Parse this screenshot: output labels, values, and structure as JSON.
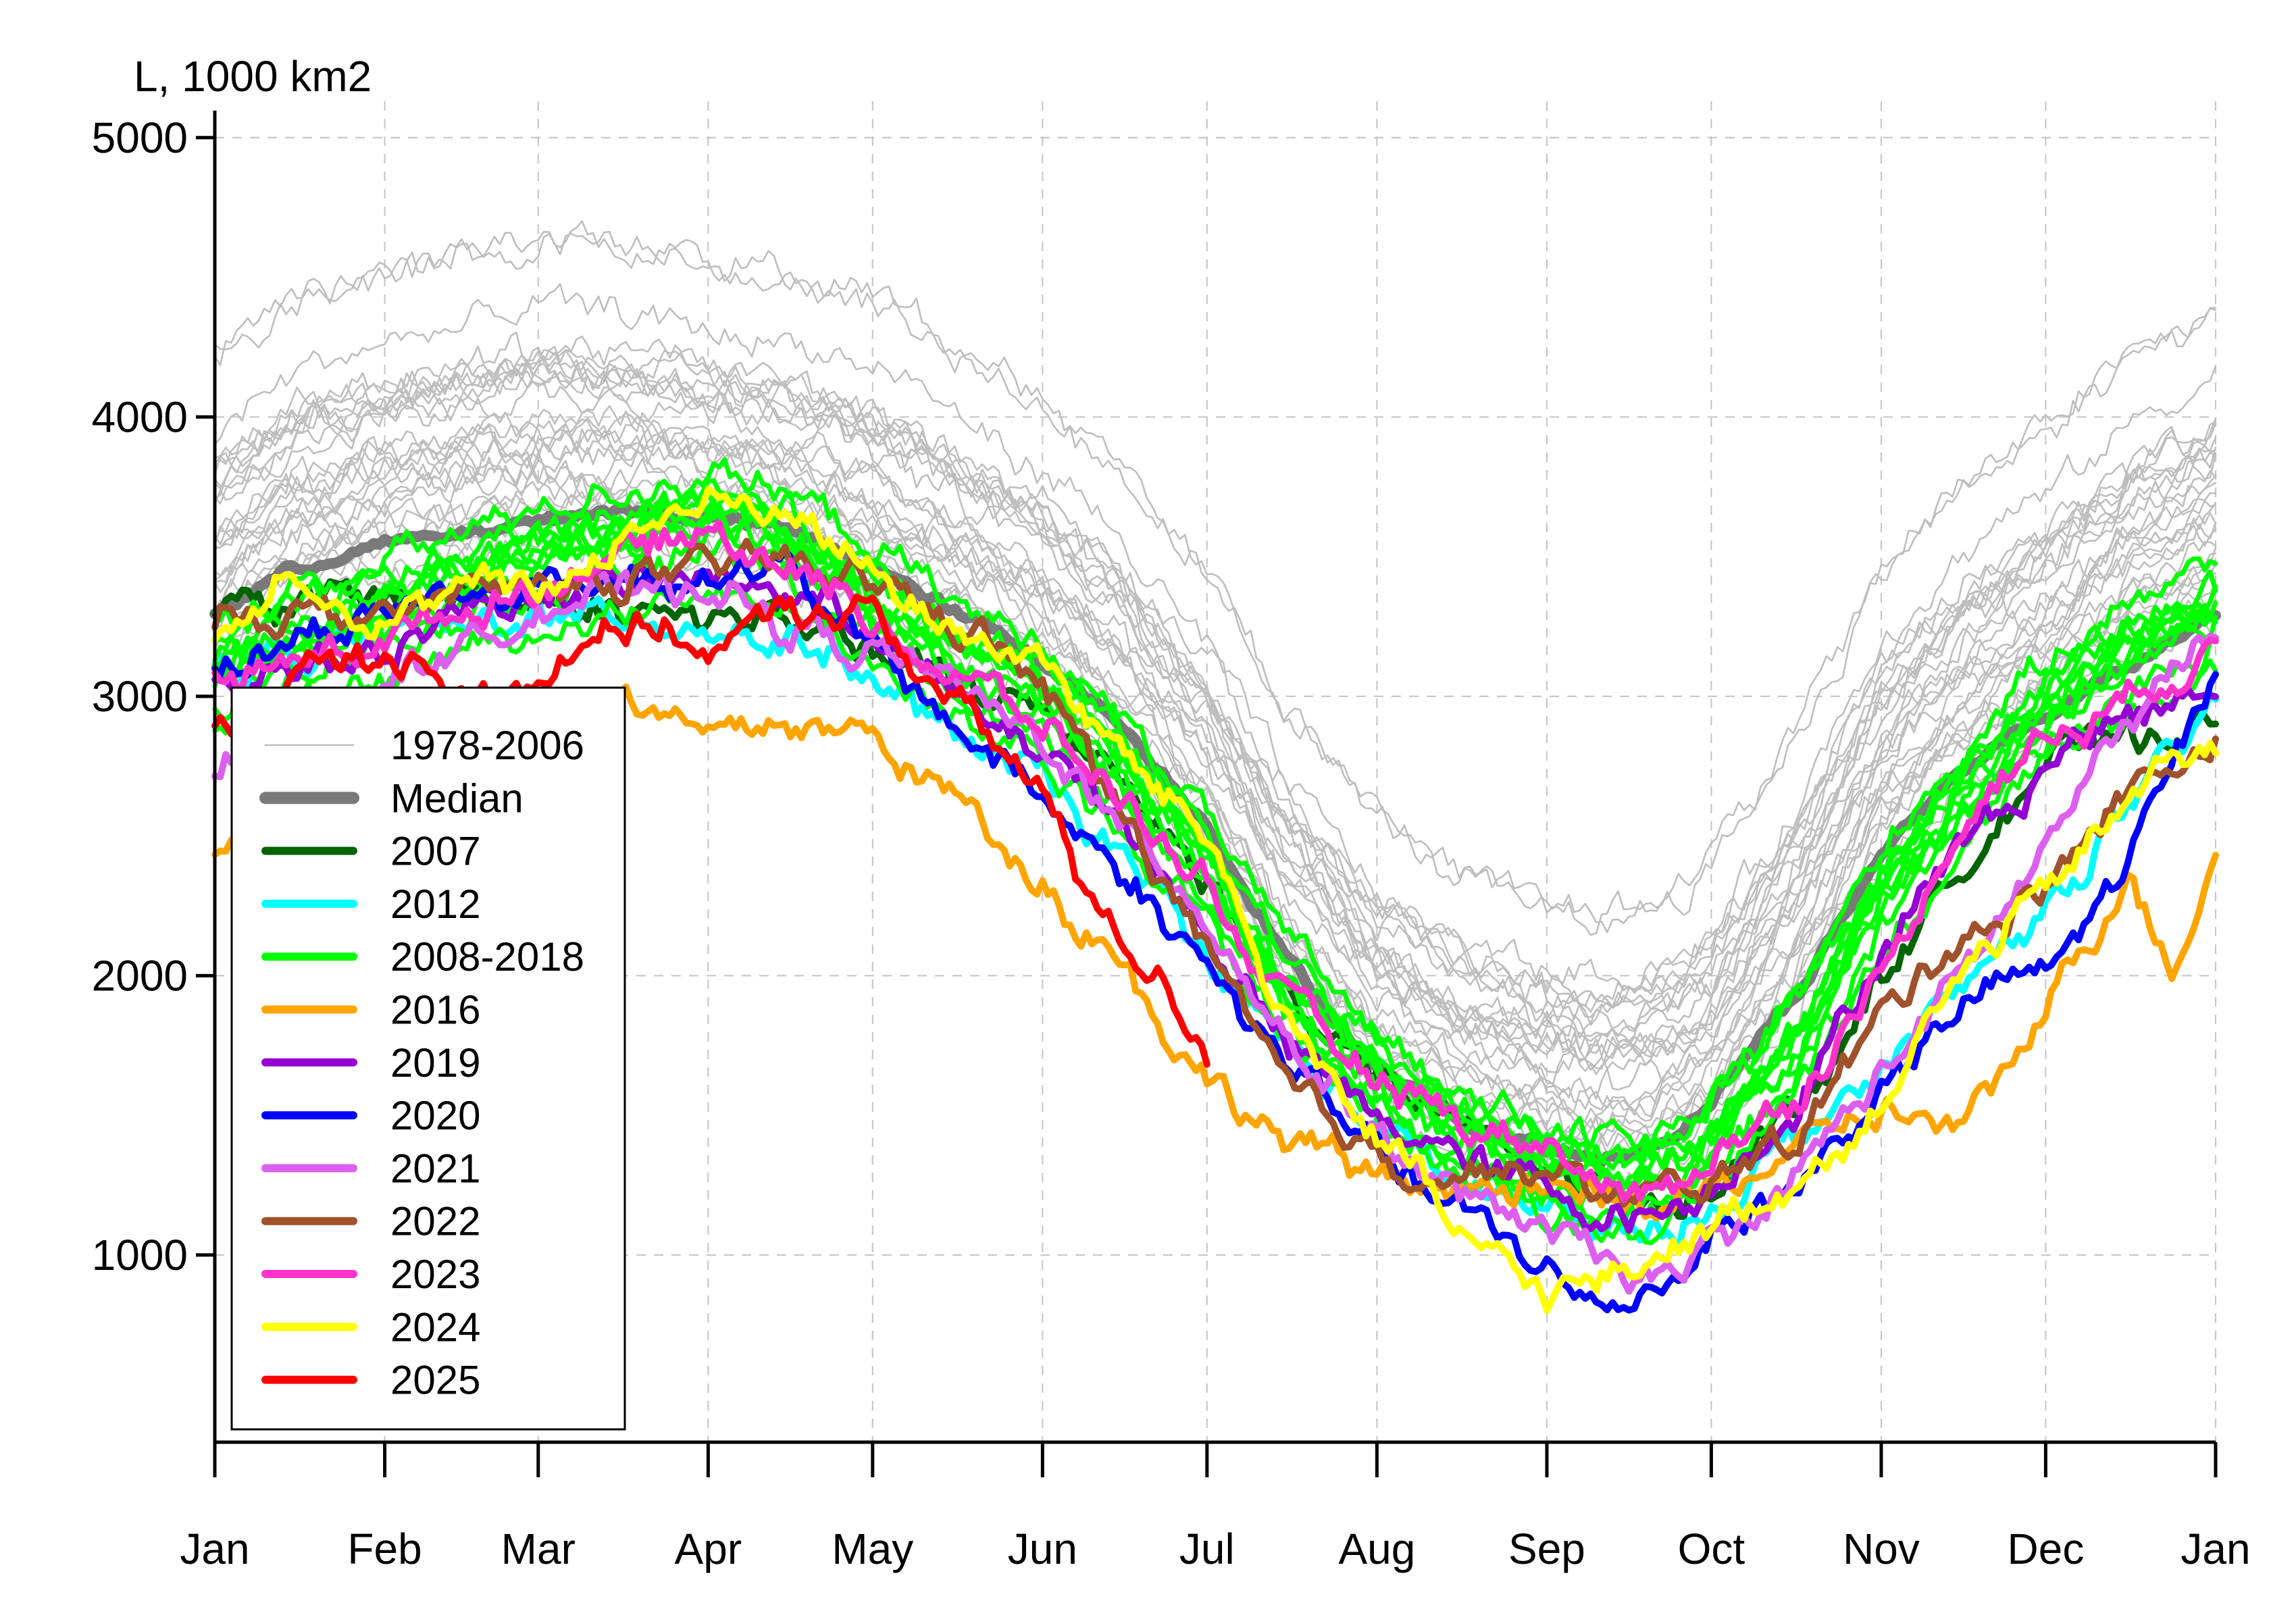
{
  "chart_data": {
    "type": "line",
    "ylabel": "L, 1000 km2",
    "ylim": [
      330,
      5130
    ],
    "xlim": [
      1,
      366
    ],
    "y_ticks": [
      1000,
      2000,
      3000,
      4000,
      5000
    ],
    "y_tick_labels": [
      "1000",
      "2000",
      "3000",
      "4000",
      "5000"
    ],
    "month_starts": [
      1,
      32,
      60,
      91,
      121,
      152,
      182,
      213,
      244,
      274,
      305,
      335,
      366
    ],
    "month_labels": [
      "Jan",
      "Feb",
      "Mar",
      "Apr",
      "May",
      "Jun",
      "Jul",
      "Aug",
      "Sep",
      "Oct",
      "Nov",
      "Dec",
      "Jan"
    ],
    "grid": true,
    "legend_position": "bottom-left",
    "historical": {
      "name": "1978-2006",
      "color": "#bebebe",
      "count": 29
    },
    "series": [
      {
        "name": "Median",
        "color": "#7a7a7a",
        "x": [
          1,
          15,
          30,
          45,
          60,
          75,
          91,
          105,
          121,
          135,
          152,
          166,
          182,
          196,
          213,
          228,
          244,
          252,
          260,
          268,
          274,
          290,
          305,
          320,
          335,
          350,
          366
        ],
        "y": [
          3300,
          3450,
          3540,
          3580,
          3620,
          3670,
          3640,
          3600,
          3470,
          3320,
          3140,
          2900,
          2540,
          2080,
          1660,
          1480,
          1380,
          1350,
          1370,
          1440,
          1560,
          1950,
          2430,
          2750,
          2930,
          3120,
          3300
        ]
      },
      {
        "name": "2007",
        "color": "#006400",
        "x": [
          1,
          30,
          60,
          91,
          105,
          121,
          135,
          152,
          166,
          182,
          196,
          213,
          228,
          244,
          252,
          260,
          268,
          274,
          290,
          305,
          320,
          335,
          350,
          366
        ],
        "y": [
          3300,
          3350,
          3350,
          3300,
          3250,
          3150,
          3050,
          2950,
          2750,
          2350,
          1950,
          1650,
          1450,
          1300,
          1250,
          1180,
          1200,
          1280,
          1550,
          2000,
          2400,
          2750,
          2850,
          2900
        ]
      },
      {
        "name": "2012",
        "color": "#00ffff",
        "x": [
          1,
          30,
          60,
          91,
          105,
          121,
          135,
          152,
          166,
          182,
          196,
          213,
          228,
          244,
          252,
          260,
          268,
          274,
          290,
          305,
          320,
          335,
          350,
          366
        ],
        "y": [
          3100,
          3200,
          3300,
          3250,
          3200,
          3050,
          2850,
          2700,
          2450,
          2100,
          1750,
          1450,
          1250,
          1130,
          1100,
          1070,
          1100,
          1170,
          1450,
          1650,
          1950,
          2250,
          2600,
          2950
        ]
      },
      {
        "name": "2008-2018",
        "color": "#00ff00",
        "count": 10,
        "x": [
          1,
          30,
          60,
          91,
          105,
          121,
          135,
          152,
          166,
          182,
          196,
          213,
          228,
          244,
          252,
          260,
          268,
          274,
          290,
          305,
          320,
          335,
          350,
          366
        ],
        "y": [
          3100,
          3300,
          3500,
          3650,
          3550,
          3350,
          3150,
          3000,
          2750,
          2400,
          1950,
          1650,
          1450,
          1300,
          1270,
          1250,
          1300,
          1400,
          1800,
          2300,
          2650,
          2950,
          3150,
          3300
        ]
      },
      {
        "name": "2016",
        "color": "#ffa500",
        "x": [
          1,
          10,
          30,
          45,
          60,
          75,
          91,
          105,
          121,
          135,
          152,
          166,
          182,
          196,
          213,
          228,
          244,
          252,
          260,
          268,
          274,
          290,
          300,
          305,
          320,
          335,
          350,
          358,
          366
        ],
        "y": [
          2450,
          2650,
          2800,
          2900,
          2950,
          3000,
          2900,
          2950,
          2850,
          2650,
          2350,
          2050,
          1600,
          1400,
          1280,
          1230,
          1200,
          1190,
          1200,
          1220,
          1260,
          1380,
          1480,
          1500,
          1450,
          1850,
          2350,
          2000,
          2450
        ]
      },
      {
        "name": "2019",
        "color": "#9400d3",
        "x": [
          1,
          30,
          60,
          91,
          105,
          121,
          135,
          152,
          166,
          182,
          196,
          213,
          228,
          244,
          252,
          260,
          268,
          274,
          290,
          305,
          320,
          335,
          350,
          366
        ],
        "y": [
          3050,
          3200,
          3350,
          3450,
          3350,
          3250,
          3000,
          2800,
          2550,
          2150,
          1750,
          1500,
          1380,
          1250,
          1180,
          1130,
          1160,
          1230,
          1550,
          2100,
          2450,
          2750,
          2950,
          3050
        ]
      },
      {
        "name": "2020",
        "color": "#0000ff",
        "x": [
          1,
          30,
          60,
          91,
          105,
          121,
          135,
          152,
          166,
          182,
          196,
          213,
          228,
          244,
          248,
          252,
          260,
          268,
          274,
          290,
          305,
          320,
          335,
          350,
          366
        ],
        "y": [
          3100,
          3300,
          3400,
          3450,
          3450,
          3150,
          2900,
          2650,
          2400,
          2050,
          1700,
          1350,
          1150,
          960,
          850,
          840,
          860,
          950,
          1100,
          1250,
          1600,
          1900,
          2000,
          2400,
          3100
        ]
      },
      {
        "name": "2021",
        "color": "#dd5ff0",
        "x": [
          1,
          30,
          60,
          91,
          105,
          121,
          135,
          152,
          166,
          182,
          196,
          213,
          228,
          244,
          252,
          260,
          268,
          274,
          290,
          305,
          320,
          335,
          350,
          366
        ],
        "y": [
          2750,
          3050,
          3300,
          3400,
          3250,
          3150,
          3050,
          2850,
          2550,
          2200,
          1800,
          1400,
          1200,
          1080,
          1000,
          950,
          930,
          1050,
          1300,
          1650,
          2000,
          2450,
          2900,
          3250
        ]
      },
      {
        "name": "2022",
        "color": "#a0522d",
        "x": [
          1,
          30,
          60,
          91,
          105,
          121,
          135,
          152,
          166,
          182,
          196,
          213,
          228,
          244,
          252,
          260,
          268,
          274,
          290,
          305,
          320,
          335,
          350,
          366
        ],
        "y": [
          3300,
          3300,
          3400,
          3450,
          3500,
          3450,
          3250,
          3050,
          2600,
          2100,
          1650,
          1380,
          1300,
          1270,
          1250,
          1200,
          1220,
          1270,
          1450,
          1850,
          2150,
          2300,
          2650,
          2800
        ]
      },
      {
        "name": "2023",
        "color": "#ff33cc",
        "x": [
          1,
          30,
          60,
          91,
          105,
          121,
          135,
          152,
          166,
          182,
          196,
          213,
          228,
          244,
          252,
          260,
          268,
          274,
          290,
          305,
          320,
          335,
          350,
          366
        ],
        "y": [
          3050,
          3200,
          3400,
          3600,
          3500,
          3300,
          3100,
          2900,
          2650,
          2300,
          1900,
          1600,
          1450,
          1350,
          1250,
          1200,
          1250,
          1350,
          1600,
          2000,
          2550,
          2850,
          3000,
          3150
        ]
      },
      {
        "name": "2024",
        "color": "#ffff00",
        "x": [
          1,
          15,
          30,
          45,
          60,
          75,
          91,
          105,
          121,
          135,
          152,
          166,
          182,
          196,
          213,
          228,
          244,
          252,
          260,
          268,
          274,
          290,
          305,
          320,
          335,
          350,
          358,
          366
        ],
        "y": [
          3200,
          3500,
          3250,
          3400,
          3350,
          3550,
          3700,
          3650,
          3450,
          3250,
          3150,
          2800,
          2500,
          1900,
          1450,
          1100,
          880,
          880,
          920,
          1000,
          1100,
          1250,
          1550,
          2000,
          2300,
          2600,
          2850,
          2800
        ]
      },
      {
        "name": "2025",
        "color": "#ff0000",
        "x": [
          1,
          10,
          20,
          32,
          45,
          60,
          70,
          80,
          91,
          105,
          121,
          135,
          152,
          160,
          166,
          175,
          182
        ],
        "y": [
          2900,
          3000,
          3100,
          3150,
          3000,
          3100,
          3250,
          3250,
          3150,
          3300,
          3300,
          3000,
          2650,
          2300,
          2150,
          1950,
          1750
        ]
      }
    ],
    "legend": [
      {
        "label": "1978-2006",
        "color": "#bebebe",
        "width": "thin"
      },
      {
        "label": "Median",
        "color": "#7a7a7a",
        "width": "thick"
      },
      {
        "label": "2007",
        "color": "#006400",
        "width": "medium"
      },
      {
        "label": "2012",
        "color": "#00ffff",
        "width": "medium"
      },
      {
        "label": "2008-2018",
        "color": "#00ff00",
        "width": "medium"
      },
      {
        "label": "2016",
        "color": "#ffa500",
        "width": "medium"
      },
      {
        "label": "2019",
        "color": "#9400d3",
        "width": "medium"
      },
      {
        "label": "2020",
        "color": "#0000ff",
        "width": "medium"
      },
      {
        "label": "2021",
        "color": "#dd5ff0",
        "width": "medium"
      },
      {
        "label": "2022",
        "color": "#a0522d",
        "width": "medium"
      },
      {
        "label": "2023",
        "color": "#ff33cc",
        "width": "medium"
      },
      {
        "label": "2024",
        "color": "#ffff00",
        "width": "medium"
      },
      {
        "label": "2025",
        "color": "#ff0000",
        "width": "medium"
      }
    ]
  }
}
